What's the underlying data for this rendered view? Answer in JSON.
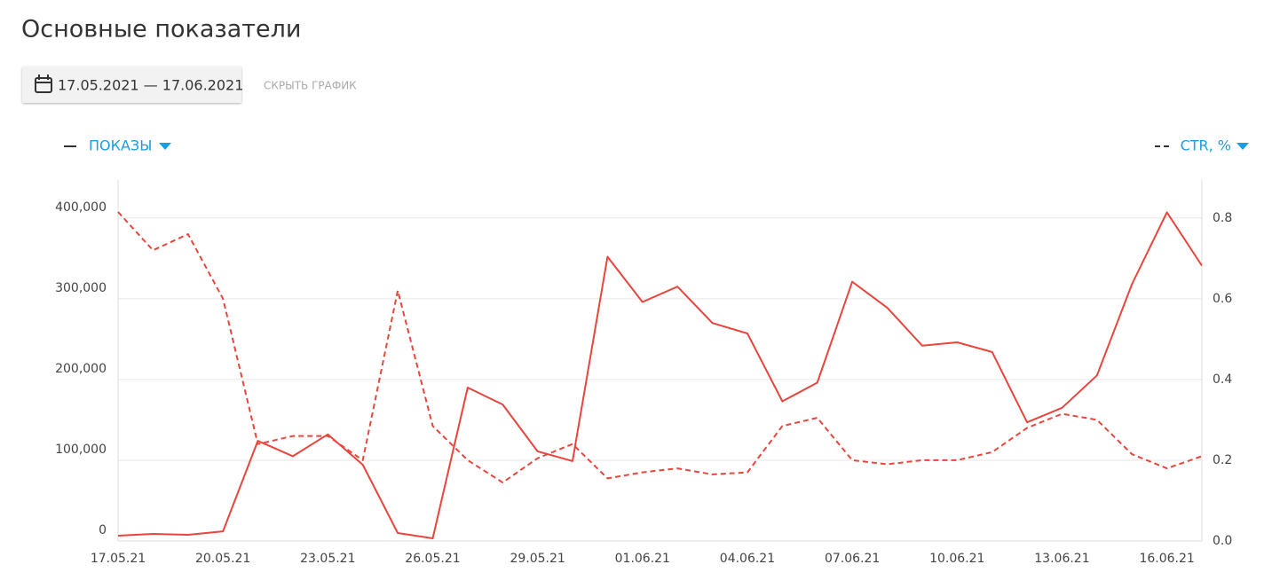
{
  "page": {
    "title": "Основные показатели",
    "date_range": "17.05.2021 — 17.06.2021",
    "hide_chart": "СКРЫТЬ ГРАФИК"
  },
  "chart_data": {
    "type": "line",
    "categories": [
      "17.05.21",
      null,
      null,
      "20.05.21",
      null,
      null,
      "23.05.21",
      null,
      null,
      "26.05.21",
      null,
      null,
      "29.05.21",
      null,
      null,
      "01.06.21",
      null,
      null,
      "04.06.21",
      null,
      null,
      "07.06.21",
      null,
      null,
      "10.06.21",
      null,
      null,
      "13.06.21",
      null,
      null,
      "16.06.21",
      null
    ],
    "series": [
      {
        "name": "ПОКАЗЫ",
        "color": "#e8453c",
        "dash": false,
        "values": [
          6600,
          8800,
          7700,
          12000,
          124000,
          105000,
          132000,
          94500,
          9900,
          3300,
          190000,
          169000,
          111000,
          99000,
          352000,
          296000,
          315000,
          270000,
          257000,
          173000,
          196000,
          321000,
          289000,
          242000,
          246000,
          234000,
          147000,
          165000,
          205000,
          318000,
          407000,
          341000
        ]
      },
      {
        "name": "CTR, %",
        "color": "#e8453c",
        "dash": true,
        "axis": "y2",
        "values": [
          0.815,
          0.72,
          0.76,
          0.6,
          0.24,
          0.26,
          0.26,
          0.2,
          0.62,
          0.285,
          0.2,
          0.145,
          0.205,
          0.24,
          0.155,
          0.17,
          0.18,
          0.165,
          0.17,
          0.285,
          0.305,
          0.2,
          0.19,
          0.2,
          0.2,
          0.22,
          0.28,
          0.315,
          0.3,
          0.215,
          0.18,
          0.21
        ]
      }
    ],
    "ylim": [
      0,
      447000
    ],
    "yticks": [
      0,
      {
        "value": 100000,
        "label": "100,000"
      },
      {
        "value": 200000,
        "label": "200,000"
      },
      {
        "value": 300000,
        "label": "300,000"
      },
      {
        "value": 400000,
        "label": "400,000"
      }
    ],
    "y2lim": [
      0,
      0.894
    ],
    "y2ticks": [
      {
        "value": 0,
        "label": "0.0"
      },
      0.2,
      0.4,
      0.6,
      0.8
    ],
    "grid": true
  }
}
